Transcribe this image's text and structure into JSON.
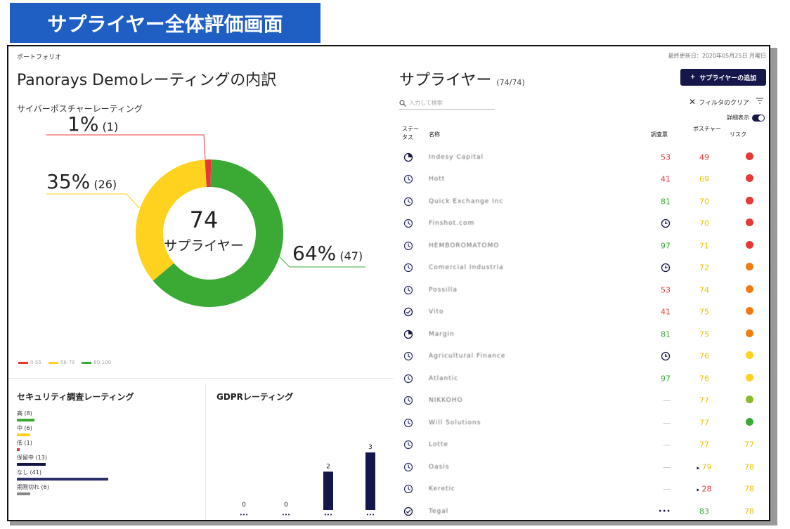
{
  "banner": "サプライヤー全体評価画面",
  "left": {
    "breadcrumb": "ポートフォリオ",
    "title": "Panorays Demoレーティングの内訳",
    "cyber_label": "サイバーポスチャーレーティング",
    "donut_center_number": "74",
    "donut_center_label": "サプライヤー",
    "callouts": [
      {
        "pct": "1%",
        "cnt": "(1)"
      },
      {
        "pct": "35%",
        "cnt": "(26)"
      },
      {
        "pct": "64%",
        "cnt": "(47)"
      }
    ],
    "legend": [
      {
        "label": "0-55",
        "color": "#e53935"
      },
      {
        "label": "56-79",
        "color": "#ffd21f"
      },
      {
        "label": "80-100",
        "color": "#3aaa35"
      }
    ],
    "chart_data": {
      "type": "pie",
      "categories": [
        "0-55",
        "56-79",
        "80-100"
      ],
      "values": [
        1,
        26,
        47
      ],
      "colors": [
        "#e53935",
        "#ffd21f",
        "#3aaa35"
      ],
      "title": "サイバーポスチャーレーティング"
    },
    "security": {
      "title": "セキュリティ調査レーティング",
      "rows": [
        {
          "label": "高 (8)",
          "value": 8,
          "color": "#3aaa35"
        },
        {
          "label": "中 (6)",
          "value": 6,
          "color": "#ffd21f"
        },
        {
          "label": "低 (1)",
          "value": 1,
          "color": "#e53935"
        },
        {
          "label": "保留中 (13)",
          "value": 13,
          "color": "#15174a"
        },
        {
          "label": "なし (41)",
          "value": 41,
          "color": "#2a2f6b"
        },
        {
          "label": "期限切れ (6)",
          "value": 6,
          "color": "#888888"
        }
      ]
    },
    "gdpr": {
      "title": "GDPRレーティング",
      "chart_data": {
        "type": "bar",
        "categories": [
          "1",
          "2",
          "3",
          "4"
        ],
        "values": [
          0,
          0,
          2,
          3
        ],
        "title": "GDPRレーティング"
      }
    }
  },
  "right": {
    "updated": "最終更新日：2020年05月25日 月曜日",
    "title": "サプライヤー",
    "count": "(74/74)",
    "add_button": "サプライヤーの追加",
    "search_placeholder": "入力して検索",
    "filter_clear": "フィルタのクリア",
    "detail_label": "詳細表示",
    "headers": {
      "status": "ステータス",
      "name": "名称",
      "survey": "調査票",
      "posture": "ポスチャー",
      "risk": "リスク"
    },
    "rows": [
      {
        "status": "partial",
        "name": "Indesy Capital",
        "survey": "53",
        "survey_color": "red",
        "posture": "49",
        "posture_color": "red",
        "risk_type": "dot",
        "risk_color": "#e53935",
        "risk": ""
      },
      {
        "status": "clock",
        "name": "Hott",
        "survey": "41",
        "survey_color": "red",
        "posture": "69",
        "posture_color": "yellow",
        "risk_type": "dot",
        "risk_color": "#e53935",
        "risk": ""
      },
      {
        "status": "clock",
        "name": "Quick Exchange Inc",
        "survey": "81",
        "survey_color": "green",
        "posture": "70",
        "posture_color": "yellow",
        "risk_type": "dot",
        "risk_color": "#e53935",
        "risk": ""
      },
      {
        "status": "clock",
        "name": "Finshot.com",
        "survey": "",
        "survey_color": "icon",
        "posture": "70",
        "posture_color": "yellow",
        "risk_type": "dot",
        "risk_color": "#e53935",
        "risk": ""
      },
      {
        "status": "clock",
        "name": "HEMBOROMATOMO",
        "survey": "97",
        "survey_color": "green",
        "posture": "71",
        "posture_color": "yellow",
        "risk_type": "dot",
        "risk_color": "#e53935",
        "risk": ""
      },
      {
        "status": "clock",
        "name": "Comercial Industria",
        "survey": "",
        "survey_color": "icon",
        "posture": "72",
        "posture_color": "yellow",
        "risk_type": "dot",
        "risk_color": "#f07c13",
        "risk": ""
      },
      {
        "status": "clock",
        "name": "Possilla",
        "survey": "53",
        "survey_color": "red",
        "posture": "74",
        "posture_color": "yellow",
        "risk_type": "dot",
        "risk_color": "#f07c13",
        "risk": ""
      },
      {
        "status": "check",
        "name": "Vito",
        "survey": "41",
        "survey_color": "red",
        "posture": "75",
        "posture_color": "yellow",
        "risk_type": "dot",
        "risk_color": "#f07c13",
        "risk": ""
      },
      {
        "status": "partial",
        "name": "Margin",
        "survey": "81",
        "survey_color": "green",
        "posture": "75",
        "posture_color": "yellow",
        "risk_type": "dot",
        "risk_color": "#f07c13",
        "risk": ""
      },
      {
        "status": "clock",
        "name": "Agricultural Finance",
        "survey": "",
        "survey_color": "icon",
        "posture": "76",
        "posture_color": "yellow",
        "risk_type": "dot",
        "risk_color": "#ffd21f",
        "risk": ""
      },
      {
        "status": "clock",
        "name": "Atlantic",
        "survey": "97",
        "survey_color": "green",
        "posture": "76",
        "posture_color": "yellow",
        "risk_type": "dot",
        "risk_color": "#ffd21f",
        "risk": ""
      },
      {
        "status": "clock",
        "name": "NIKKOHO",
        "survey": "—",
        "survey_color": "dash",
        "posture": "77",
        "posture_color": "yellow",
        "risk_type": "dot",
        "risk_color": "#8dbb2e",
        "risk": ""
      },
      {
        "status": "clock",
        "name": "Will Solutions",
        "survey": "—",
        "survey_color": "dash",
        "posture": "77",
        "posture_color": "yellow",
        "risk_type": "dot",
        "risk_color": "#3aaa35",
        "risk": ""
      },
      {
        "status": "clock",
        "name": "Lotte",
        "survey": "—",
        "survey_color": "dash",
        "posture": "77",
        "posture_color": "yellow",
        "risk_type": "text",
        "risk_color": "#e8c300",
        "risk": "77"
      },
      {
        "status": "clock",
        "name": "Oasis",
        "survey": "—",
        "survey_color": "dash",
        "posture": "79",
        "posture_color": "yellow",
        "risk_type": "text",
        "risk_color": "#e8c300",
        "risk": "78"
      },
      {
        "status": "clock",
        "name": "Keretic",
        "survey": "—",
        "survey_color": "dash",
        "posture": "28",
        "posture_color": "red",
        "risk_type": "text",
        "risk_color": "#e8c300",
        "risk": "78"
      },
      {
        "status": "check",
        "name": "Tegal",
        "survey": "•••",
        "survey_color": "dots",
        "posture": "83",
        "posture_color": "green",
        "risk_type": "text",
        "risk_color": "#e8c300",
        "risk": "78"
      }
    ]
  }
}
